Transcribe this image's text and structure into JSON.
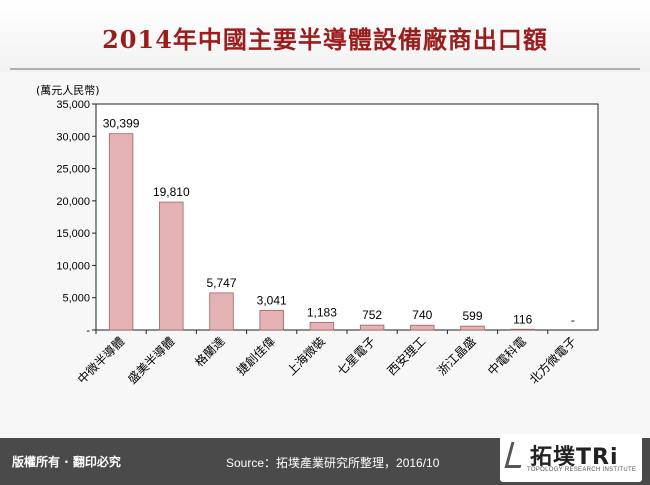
{
  "title": "2014年中國主要半導體設備廠商出口額",
  "footer": {
    "copyright": "版權所有 · 翻印必究",
    "source": "Source：拓墣產業研究所整理，2016/10",
    "logo_main": "拓墣TRi",
    "logo_sub": "TOPOLOGY RESEARCH INSTITUTE"
  },
  "chart_data": {
    "type": "bar",
    "title": "2014年中國主要半導體設備廠商出口額",
    "ylabel": "(萬元人民幣)",
    "xlabel": "",
    "ylim": [
      0,
      35000
    ],
    "yticks": [
      0,
      5000,
      10000,
      15000,
      20000,
      25000,
      30000,
      35000
    ],
    "ytick_labels": [
      "-",
      "5,000",
      "10,000",
      "15,000",
      "20,000",
      "25,000",
      "30,000",
      "35,000"
    ],
    "categories": [
      "中微半導體",
      "盛美半導體",
      "格蘭達",
      "捷創佳偉",
      "上海微裝",
      "七星電子",
      "西安理工",
      "浙江晶盛",
      "中電科電",
      "北方微電子"
    ],
    "values": [
      30399,
      19810,
      5747,
      3041,
      1183,
      752,
      740,
      599,
      116,
      0
    ],
    "data_labels": [
      "30,399",
      "19,810",
      "5,747",
      "3,041",
      "1,183",
      "752",
      "740",
      "599",
      "116",
      "-"
    ],
    "bar_color": "#e5b3b3",
    "bar_edge_color": "#a06060",
    "grid": false,
    "legend": "none"
  }
}
